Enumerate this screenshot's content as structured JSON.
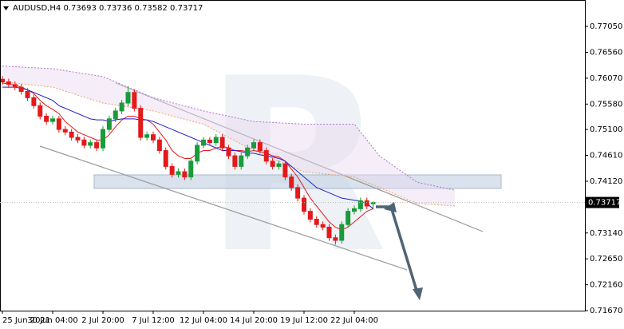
{
  "chart_data": {
    "type": "candlestick",
    "title": "AUDUSD,H4  0.73693 0.73736 0.73582 0.73717",
    "categories": [
      "25 Jun 2021",
      null,
      null,
      null,
      null,
      null,
      null,
      null,
      "30 Jun 04:00",
      null,
      null,
      null,
      null,
      null,
      null,
      null,
      "2 Jul 20:00",
      null,
      null,
      null,
      null,
      null,
      null,
      null,
      "7 Jul 12:00",
      null,
      null,
      null,
      null,
      null,
      null,
      null,
      "12 Jul 04:00",
      null,
      null,
      null,
      null,
      null,
      null,
      null,
      "14 Jul 20:00",
      null,
      null,
      null,
      null,
      null,
      null,
      null,
      "19 Jul 12:00",
      null,
      null,
      null,
      null,
      null,
      null,
      null,
      "22 Jul 04:00",
      null,
      null,
      null
    ],
    "open": [
      0.7605,
      0.76,
      0.7595,
      0.759,
      0.7582,
      0.757,
      0.7555,
      0.7535,
      0.7525,
      0.753,
      0.751,
      0.7505,
      0.7495,
      0.749,
      0.748,
      0.7485,
      0.7475,
      0.751,
      0.753,
      0.7545,
      0.756,
      0.758,
      0.755,
      0.7495,
      0.75,
      0.749,
      0.747,
      0.744,
      0.7425,
      0.743,
      0.742,
      0.745,
      0.748,
      0.749,
      0.7485,
      0.7495,
      0.7475,
      0.746,
      0.744,
      0.746,
      0.7475,
      0.7485,
      0.747,
      0.745,
      0.744,
      0.7445,
      0.742,
      0.74,
      0.738,
      0.7355,
      0.734,
      0.733,
      0.7325,
      0.7305,
      0.73,
      0.733,
      0.7355,
      0.736,
      0.7375,
      0.73693
    ],
    "high": [
      0.7611,
      0.7606,
      0.7601,
      0.7596,
      0.7588,
      0.7576,
      0.7561,
      0.7541,
      0.7536,
      0.7536,
      0.7516,
      0.7511,
      0.7501,
      0.7496,
      0.7491,
      0.7491,
      0.7516,
      0.7536,
      0.7551,
      0.7566,
      0.7592,
      0.7586,
      0.7556,
      0.7506,
      0.7506,
      0.7496,
      0.7476,
      0.7446,
      0.7436,
      0.7436,
      0.7456,
      0.7486,
      0.7496,
      0.7496,
      0.7501,
      0.7501,
      0.7481,
      0.7466,
      0.7466,
      0.7481,
      0.7491,
      0.7491,
      0.7476,
      0.7456,
      0.7451,
      0.7451,
      0.7426,
      0.7406,
      0.7386,
      0.7361,
      0.7346,
      0.7336,
      0.7331,
      0.7311,
      0.7336,
      0.7361,
      0.7366,
      0.7381,
      0.7381,
      0.73736
    ],
    "low": [
      0.7594,
      0.7589,
      0.7584,
      0.7576,
      0.7564,
      0.7549,
      0.7529,
      0.7519,
      0.7519,
      0.7504,
      0.7499,
      0.7489,
      0.7484,
      0.7474,
      0.7474,
      0.7469,
      0.7469,
      0.7504,
      0.7524,
      0.7539,
      0.7554,
      0.7544,
      0.7489,
      0.7489,
      0.7484,
      0.7464,
      0.7434,
      0.7419,
      0.7419,
      0.7414,
      0.7414,
      0.7444,
      0.7474,
      0.7479,
      0.7479,
      0.7469,
      0.7454,
      0.7434,
      0.7434,
      0.7454,
      0.7469,
      0.7464,
      0.7444,
      0.7434,
      0.7434,
      0.7414,
      0.7394,
      0.7374,
      0.7349,
      0.7334,
      0.7324,
      0.7319,
      0.7299,
      0.7292,
      0.7294,
      0.7324,
      0.7349,
      0.7354,
      0.7359,
      0.73582
    ],
    "close": [
      0.76,
      0.7595,
      0.759,
      0.7582,
      0.757,
      0.7555,
      0.7535,
      0.7525,
      0.753,
      0.751,
      0.7505,
      0.7495,
      0.749,
      0.748,
      0.7485,
      0.7475,
      0.751,
      0.753,
      0.7545,
      0.756,
      0.758,
      0.755,
      0.7495,
      0.75,
      0.749,
      0.747,
      0.744,
      0.7425,
      0.743,
      0.742,
      0.745,
      0.748,
      0.749,
      0.7485,
      0.7495,
      0.7475,
      0.746,
      0.744,
      0.746,
      0.7475,
      0.7485,
      0.747,
      0.745,
      0.744,
      0.7445,
      0.742,
      0.74,
      0.738,
      0.7355,
      0.734,
      0.733,
      0.7325,
      0.7305,
      0.73,
      0.733,
      0.7355,
      0.736,
      0.7375,
      0.7365,
      0.73717
    ],
    "up_color": "#1a9a3a",
    "down_color": "#e31a1c",
    "lines": [
      {
        "color": "#e31a1c",
        "values": [
          0.7598,
          0.7596,
          0.7594,
          0.759,
          0.7585,
          0.7578,
          0.7565,
          0.7555,
          0.7548,
          0.754,
          0.7525,
          0.7515,
          0.7505,
          0.75,
          0.7495,
          0.749,
          0.749,
          0.75,
          0.7515,
          0.7528,
          0.7535,
          0.7535,
          0.753,
          0.7528,
          0.752,
          0.7505,
          0.749,
          0.747,
          0.746,
          0.7455,
          0.7455,
          0.7465,
          0.747,
          0.747,
          0.7475,
          0.7478,
          0.7475,
          0.747,
          0.747,
          0.7468,
          0.747,
          0.7468,
          0.7465,
          0.746,
          0.7458,
          0.745,
          0.7435,
          0.742,
          0.74,
          0.738,
          0.7365,
          0.735,
          0.7335,
          0.7325,
          0.732,
          0.7325,
          0.7335,
          0.7345,
          0.7355,
          0.736
        ]
      },
      {
        "color": "#1f1fd0",
        "values": [
          0.759,
          0.759,
          0.759,
          0.7588,
          0.7585,
          0.758,
          0.7575,
          0.757,
          0.7565,
          0.7555,
          0.755,
          0.7545,
          0.754,
          0.7535,
          0.753,
          0.7528,
          0.7528,
          0.7525,
          0.7528,
          0.753,
          0.753,
          0.753,
          0.7528,
          0.7528,
          0.7525,
          0.752,
          0.7515,
          0.751,
          0.7505,
          0.75,
          0.7495,
          0.749,
          0.7485,
          0.748,
          0.7475,
          0.747,
          0.747,
          0.747,
          0.7468,
          0.7465,
          0.7465,
          0.7462,
          0.746,
          0.7458,
          0.7455,
          0.745,
          0.744,
          0.743,
          0.742,
          0.741,
          0.74,
          0.7395,
          0.739,
          0.7385,
          0.738,
          0.7378,
          0.7376,
          0.7374,
          0.737,
          0.736
        ]
      }
    ],
    "cloud": {
      "x": [
        0,
        8,
        16,
        24,
        32,
        40,
        48,
        56,
        60,
        66,
        72
      ],
      "upper": [
        0.763,
        0.7625,
        0.761,
        0.757,
        0.7545,
        0.7525,
        0.752,
        0.752,
        0.746,
        0.741,
        0.7395
      ],
      "lower": [
        0.76,
        0.759,
        0.756,
        0.7545,
        0.752,
        0.747,
        0.743,
        0.742,
        0.74,
        0.737,
        0.7365
      ],
      "upper_color": "#b070d0",
      "lower_color": "#f0a060"
    },
    "ylim": [
      0.7167,
      0.7755
    ],
    "yticks": [
      {
        "value": 0.7705,
        "label": "0.77050"
      },
      {
        "value": 0.7656,
        "label": "0.76560"
      },
      {
        "value": 0.7607,
        "label": "0.76070"
      },
      {
        "value": 0.7558,
        "label": "0.75580"
      },
      {
        "value": 0.751,
        "label": "0.75100"
      },
      {
        "value": 0.7461,
        "label": "0.74610"
      },
      {
        "value": 0.7412,
        "label": "0.74120"
      },
      {
        "value": 0.7314,
        "label": "0.73140"
      },
      {
        "value": 0.7265,
        "label": "0.72650"
      },
      {
        "value": 0.7216,
        "label": "0.72160"
      },
      {
        "value": 0.7167,
        "label": "0.71670"
      }
    ],
    "current_price": {
      "value": 0.73717,
      "label": "0.73717"
    }
  }
}
